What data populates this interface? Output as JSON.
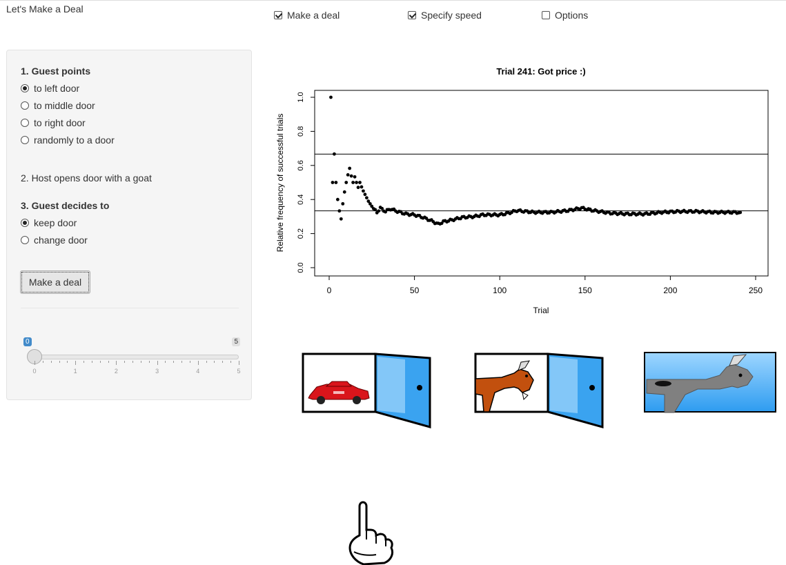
{
  "app": {
    "title": "Let's Make a Deal"
  },
  "top_checkboxes": [
    {
      "label": "Make a deal",
      "checked": true
    },
    {
      "label": "Specify speed",
      "checked": true
    },
    {
      "label": "Options",
      "checked": false
    }
  ],
  "sidebar": {
    "guest_points": {
      "title": "1. Guest points",
      "options": [
        "to left door",
        "to middle door",
        "to right door",
        "randomly to a door"
      ],
      "selected": "to left door"
    },
    "host_step": "2. Host opens door with a goat",
    "guest_decides": {
      "title": "3. Guest decides to",
      "options": [
        "keep door",
        "change door"
      ],
      "selected": "keep door"
    },
    "deal_button": "Make a deal",
    "speed_slider": {
      "min": 0,
      "max": 5,
      "value": 0,
      "min_label": "0",
      "max_label": "5",
      "tick_labels": [
        "0",
        "1",
        "2",
        "3",
        "4",
        "5"
      ]
    }
  },
  "chart_data": {
    "type": "scatter",
    "title": "Trial 241: Got price :)",
    "xlabel": "Trial",
    "ylabel": "Relative frequency of successful trials",
    "xlim": [
      0,
      250
    ],
    "ylim": [
      0,
      1
    ],
    "x_ticks": [
      "0",
      "50",
      "100",
      "150",
      "200",
      "250"
    ],
    "y_ticks": [
      "0.0",
      "0.2",
      "0.4",
      "0.6",
      "0.8",
      "1.0"
    ],
    "hlines": [
      0.6667,
      0.3333
    ],
    "anchors": [
      [
        1,
        1.0
      ],
      [
        2,
        0.5
      ],
      [
        3,
        0.667
      ],
      [
        4,
        0.5
      ],
      [
        5,
        0.4
      ],
      [
        6,
        0.333
      ],
      [
        7,
        0.286
      ],
      [
        8,
        0.375
      ],
      [
        9,
        0.444
      ],
      [
        10,
        0.5
      ],
      [
        11,
        0.545
      ],
      [
        12,
        0.583
      ],
      [
        13,
        0.538
      ],
      [
        14,
        0.5
      ],
      [
        15,
        0.533
      ],
      [
        16,
        0.5
      ],
      [
        17,
        0.471
      ],
      [
        18,
        0.5
      ],
      [
        19,
        0.474
      ],
      [
        20,
        0.45
      ],
      [
        21,
        0.43
      ],
      [
        22,
        0.41
      ],
      [
        23,
        0.39
      ],
      [
        24,
        0.375
      ],
      [
        25,
        0.36
      ],
      [
        26,
        0.345
      ],
      [
        28,
        0.325
      ],
      [
        30,
        0.35
      ],
      [
        33,
        0.33
      ],
      [
        36,
        0.345
      ],
      [
        40,
        0.33
      ],
      [
        45,
        0.315
      ],
      [
        50,
        0.31
      ],
      [
        55,
        0.295
      ],
      [
        60,
        0.275
      ],
      [
        64,
        0.255
      ],
      [
        67,
        0.27
      ],
      [
        72,
        0.28
      ],
      [
        78,
        0.295
      ],
      [
        85,
        0.3
      ],
      [
        90,
        0.31
      ],
      [
        95,
        0.31
      ],
      [
        100,
        0.31
      ],
      [
        105,
        0.32
      ],
      [
        110,
        0.335
      ],
      [
        120,
        0.325
      ],
      [
        130,
        0.325
      ],
      [
        140,
        0.335
      ],
      [
        148,
        0.35
      ],
      [
        155,
        0.335
      ],
      [
        165,
        0.32
      ],
      [
        175,
        0.315
      ],
      [
        185,
        0.315
      ],
      [
        195,
        0.325
      ],
      [
        205,
        0.33
      ],
      [
        215,
        0.33
      ],
      [
        225,
        0.325
      ],
      [
        235,
        0.325
      ],
      [
        241,
        0.324
      ]
    ]
  },
  "doors": [
    {
      "state": "open",
      "content": "car"
    },
    {
      "state": "open",
      "content": "goat"
    },
    {
      "state": "closed-with-goat-visible",
      "content": "goat"
    }
  ],
  "pointer": {
    "icon": "pointing-hand-icon",
    "points_to_door": 1
  },
  "colors": {
    "panel_bg": "#f5f5f5",
    "slider_accent": "#428bca",
    "door_blue": "#3aa3f0",
    "car_red": "#d9151b",
    "goat_orange": "#c2500e"
  }
}
